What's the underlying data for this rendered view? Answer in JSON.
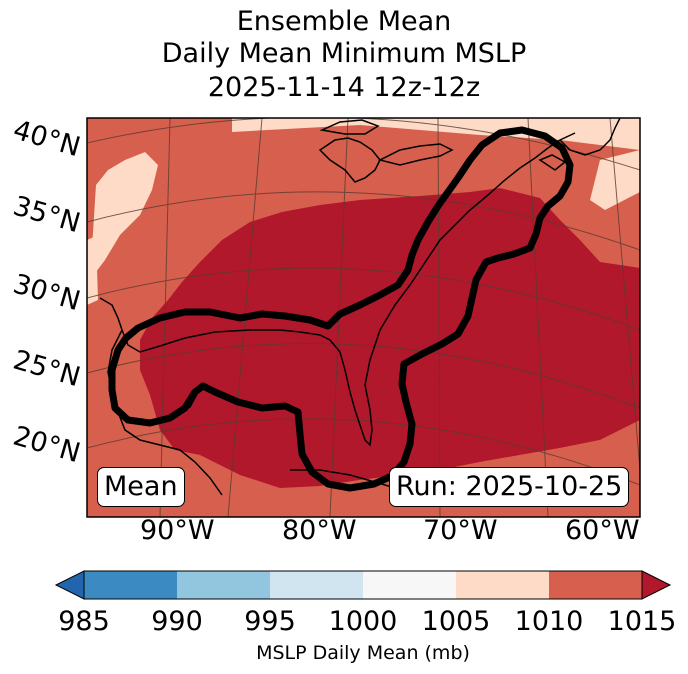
{
  "title": {
    "line1": "Ensemble Mean",
    "line2": "Daily Mean Minimum MSLP",
    "line3": "2025-11-14 12z-12z"
  },
  "lat_labels": [
    "40°N",
    "35°N",
    "30°N",
    "25°N",
    "20°N"
  ],
  "lon_labels": [
    "90°W",
    "80°W",
    "70°W",
    "60°W"
  ],
  "annotations": {
    "left_box": "Mean",
    "right_box": "Run: 2025-10-25"
  },
  "colorbar": {
    "ticks": [
      "985",
      "990",
      "995",
      "1000",
      "1005",
      "1010",
      "1015"
    ],
    "colors": [
      "#3b8bc2",
      "#92c5de",
      "#d1e5f0",
      "#f7f7f7",
      "#fddbc7",
      "#d6604d",
      "#b2182b",
      "#2166ac"
    ],
    "label": "MSLP Daily Mean (mb)"
  },
  "map_colors": {
    "level_1005_1010": "#fddbc7",
    "level_1010_1015": "#d6604d",
    "level_above_1015": "#b2182b"
  }
}
